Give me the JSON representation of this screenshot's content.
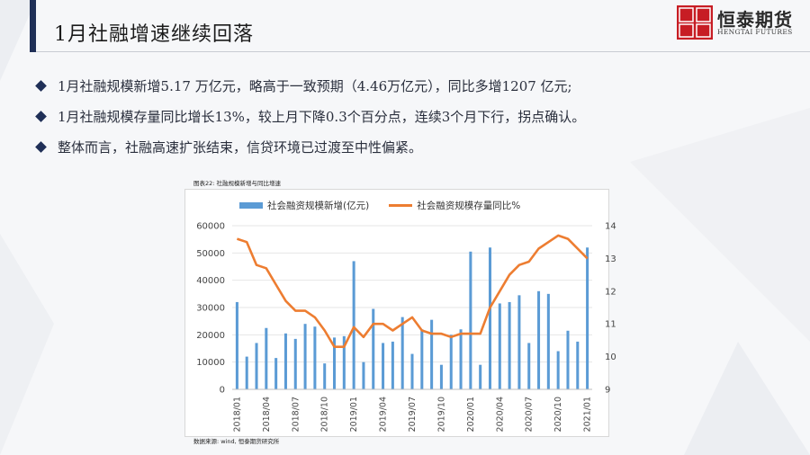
{
  "header": {
    "title": "1月社融增速继续回落",
    "logo_cn": "恒泰期货",
    "logo_en": "HENGTAI FUTURES"
  },
  "bullets": [
    "1月社融规模新增5.17 万亿元，略高于一致预期（4.46万亿元），同比多增1207 亿元;",
    "1月社融规模存量同比增长13%，较上月下降0.3个百分点，连续3个月下行，拐点确认。",
    "整体而言，社融高速扩张结束，信贷环境已过渡至中性偏紧。"
  ],
  "chart_caption": "图表22: 社融规模新增与同比增速",
  "chart_source": "数据来源: wind, 恒泰期货研究所",
  "colors": {
    "bar": "#5b9bd5",
    "line": "#ed7d31",
    "accent": "#1f2f57",
    "brand": "#c71d24"
  },
  "chart_data": {
    "type": "bar",
    "x": [
      "2018/01",
      "2018/02",
      "2018/03",
      "2018/04",
      "2018/05",
      "2018/06",
      "2018/07",
      "2018/08",
      "2018/09",
      "2018/10",
      "2018/11",
      "2018/12",
      "2019/01",
      "2019/02",
      "2019/03",
      "2019/04",
      "2019/05",
      "2019/06",
      "2019/07",
      "2019/08",
      "2019/09",
      "2019/10",
      "2019/11",
      "2019/12",
      "2020/01",
      "2020/02",
      "2020/03",
      "2020/04",
      "2020/05",
      "2020/06",
      "2020/07",
      "2020/08",
      "2020/09",
      "2020/10",
      "2020/11",
      "2020/12",
      "2021/01"
    ],
    "xticks": [
      "2018/01",
      "2018/04",
      "2018/07",
      "2018/10",
      "2019/01",
      "2019/04",
      "2019/07",
      "2019/10",
      "2020/01",
      "2020/04",
      "2020/07",
      "2020/10",
      "2021/01"
    ],
    "series": [
      {
        "name": "社会融资规模新增(亿元)",
        "type": "bar",
        "axis": "left",
        "values": [
          32000,
          12000,
          17000,
          22500,
          11500,
          20500,
          18500,
          24000,
          23000,
          9500,
          19000,
          19500,
          47000,
          10000,
          29500,
          17000,
          17500,
          26500,
          13000,
          22000,
          25500,
          9000,
          20000,
          22000,
          50500,
          9000,
          52000,
          31500,
          32000,
          34500,
          17000,
          36000,
          35000,
          14000,
          21500,
          17500,
          52000
        ]
      },
      {
        "name": "社会融资规模存量同比%",
        "type": "line",
        "axis": "right",
        "values": [
          13.6,
          13.5,
          12.8,
          12.7,
          12.2,
          11.7,
          11.4,
          11.4,
          11.2,
          10.8,
          10.3,
          10.3,
          10.9,
          10.6,
          11.0,
          11.0,
          10.8,
          11.0,
          11.2,
          10.8,
          10.7,
          10.7,
          10.6,
          10.7,
          10.7,
          10.7,
          11.5,
          12.0,
          12.5,
          12.8,
          12.9,
          13.3,
          13.5,
          13.7,
          13.6,
          13.3,
          13.0
        ]
      }
    ],
    "y_left": {
      "min": 0,
      "max": 60000,
      "ticks": [
        0,
        10000,
        20000,
        30000,
        40000,
        50000,
        60000
      ]
    },
    "y_right": {
      "min": 9,
      "max": 14,
      "ticks": [
        9,
        10,
        11,
        12,
        13,
        14
      ]
    },
    "legend_position": "top",
    "grid": true
  }
}
